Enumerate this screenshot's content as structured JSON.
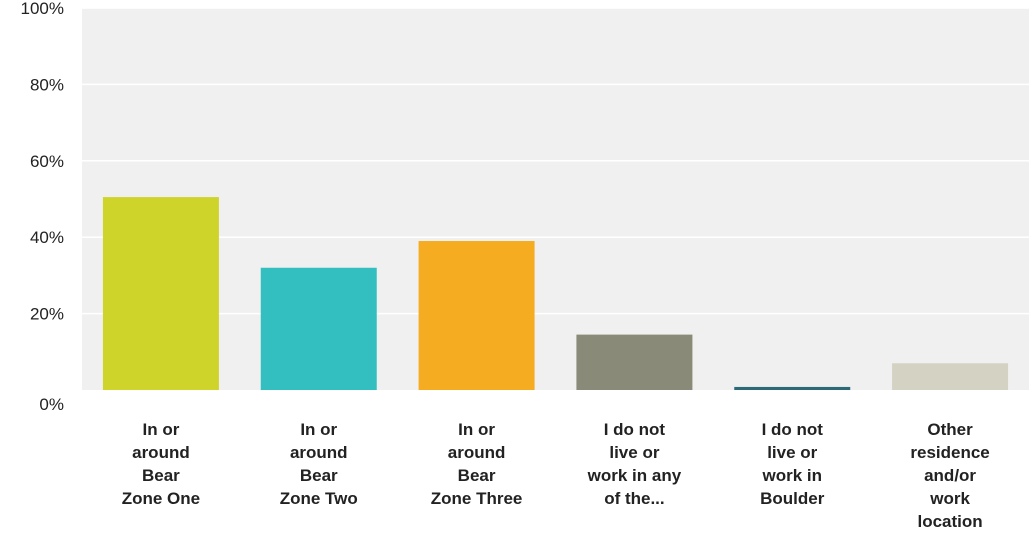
{
  "chart_data": {
    "type": "bar",
    "categories": [
      [
        "In or",
        "around",
        "Bear",
        "Zone One"
      ],
      [
        "In or",
        "around",
        "Bear",
        "Zone Two"
      ],
      [
        "In or",
        "around",
        "Bear",
        "Zone Three"
      ],
      [
        "I do not",
        "live or",
        "work in any",
        "of the..."
      ],
      [
        "I do not",
        "live or",
        "work in",
        "Boulder"
      ],
      [
        "Other",
        "residence",
        "and/or",
        "work",
        "location"
      ]
    ],
    "values": [
      50.5,
      32,
      39,
      14.5,
      0.8,
      7
    ],
    "colors": [
      "#cfd42a",
      "#33bfc0",
      "#f5ac21",
      "#8a8a78",
      "#2c6a7a",
      "#d3d2c3"
    ],
    "y_ticks": [
      "0%",
      "20%",
      "40%",
      "60%",
      "80%",
      "100%"
    ],
    "ylim": [
      0,
      100
    ],
    "plot_background": "#f0f0f0",
    "grid": true
  }
}
